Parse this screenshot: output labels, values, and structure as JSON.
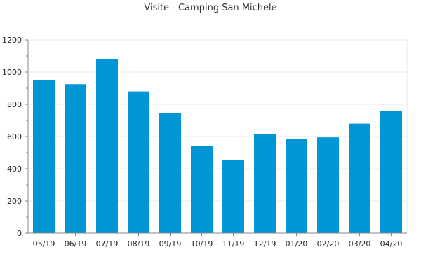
{
  "chart_data": {
    "type": "bar",
    "title": "Visite - Camping San Michele",
    "categories": [
      "05/19",
      "06/19",
      "07/19",
      "08/19",
      "09/19",
      "10/19",
      "11/19",
      "12/19",
      "01/20",
      "02/20",
      "03/20",
      "04/20"
    ],
    "values": [
      950,
      925,
      1080,
      880,
      745,
      540,
      455,
      615,
      585,
      595,
      680,
      760
    ],
    "ylim": [
      0,
      1200
    ],
    "yticks": [
      0,
      200,
      400,
      600,
      800,
      1000,
      1200
    ],
    "grid": true,
    "bar_color": "#0096d6",
    "grid_color": "#e8e8e8",
    "axis_color": "#888888"
  }
}
